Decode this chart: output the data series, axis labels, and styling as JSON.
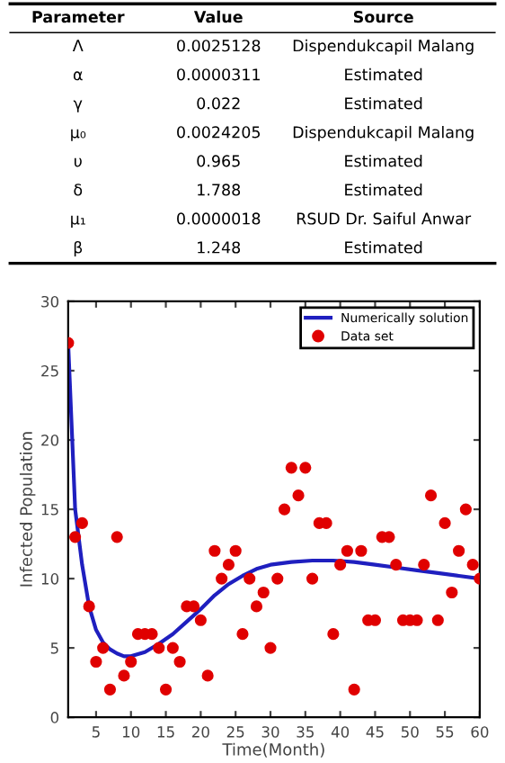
{
  "chart_data": [
    {
      "type": "other",
      "annotations": [
        "Parameter",
        "Value",
        "Source",
        "Λ",
        "0.0025128",
        "Dispendukcapil Malang",
        "α",
        "0.0000311",
        "Estimated",
        "γ",
        "0.022",
        "Estimated",
        "μ₀",
        "0.0024205",
        "Dispendukcapil Malang",
        "υ",
        "0.965",
        "Estimated",
        "δ",
        "1.788",
        "Estimated",
        "μ₁",
        "0.0000018",
        "RSUD Dr. Saiful Anwar",
        "β",
        "1.248",
        "Estimated"
      ]
    },
    {
      "type": "scatter",
      "xlabel": "Time(Month)",
      "ylabel": "Infected Population",
      "xlim": [
        1,
        60
      ],
      "ylim": [
        0,
        30
      ],
      "xticks": [
        5,
        10,
        15,
        20,
        25,
        30,
        35,
        40,
        45,
        50,
        55,
        60
      ],
      "yticks": [
        0,
        5,
        10,
        15,
        20,
        25,
        30
      ],
      "grid": false,
      "legend": "top right",
      "series": [
        {
          "name": "Numerically solution",
          "type": "line",
          "color": "#1f1fbf",
          "marker": "none",
          "line_style": "solid",
          "x": [
            1,
            2,
            3,
            4,
            5,
            6,
            7,
            8,
            9,
            10,
            12,
            14,
            16,
            18,
            20,
            22,
            24,
            26,
            28,
            30,
            33,
            36,
            39,
            42,
            45,
            48,
            51,
            54,
            57,
            60
          ],
          "values": [
            27,
            15,
            11,
            8,
            6.3,
            5.4,
            4.9,
            4.6,
            4.4,
            4.4,
            4.7,
            5.3,
            6,
            6.9,
            7.8,
            8.8,
            9.6,
            10.2,
            10.7,
            11,
            11.2,
            11.3,
            11.3,
            11.2,
            11,
            10.8,
            10.6,
            10.4,
            10.2,
            10
          ]
        },
        {
          "name": "Data set",
          "type": "scatter",
          "color": "#e00000",
          "marker": "circle",
          "x": [
            1,
            2,
            3,
            4,
            5,
            6,
            7,
            8,
            9,
            10,
            11,
            12,
            13,
            14,
            15,
            16,
            17,
            18,
            19,
            20,
            21,
            22,
            23,
            24,
            25,
            26,
            27,
            28,
            29,
            30,
            31,
            32,
            33,
            34,
            35,
            36,
            37,
            38,
            39,
            40,
            41,
            42,
            43,
            44,
            45,
            46,
            47,
            48,
            49,
            50,
            51,
            52,
            53,
            54,
            55,
            56,
            57,
            58,
            59,
            60
          ],
          "values": [
            27,
            13,
            14,
            8,
            4,
            5,
            2,
            13,
            3,
            4,
            6,
            6,
            6,
            5,
            2,
            5,
            4,
            8,
            8,
            7,
            3,
            12,
            10,
            11,
            12,
            6,
            10,
            8,
            9,
            5,
            10,
            15,
            18,
            16,
            18,
            10,
            14,
            14,
            6,
            11,
            12,
            2,
            12,
            7,
            7,
            13,
            13,
            11,
            7,
            7,
            7,
            11,
            16,
            7,
            14,
            9,
            12,
            15,
            11,
            10
          ]
        }
      ]
    }
  ]
}
